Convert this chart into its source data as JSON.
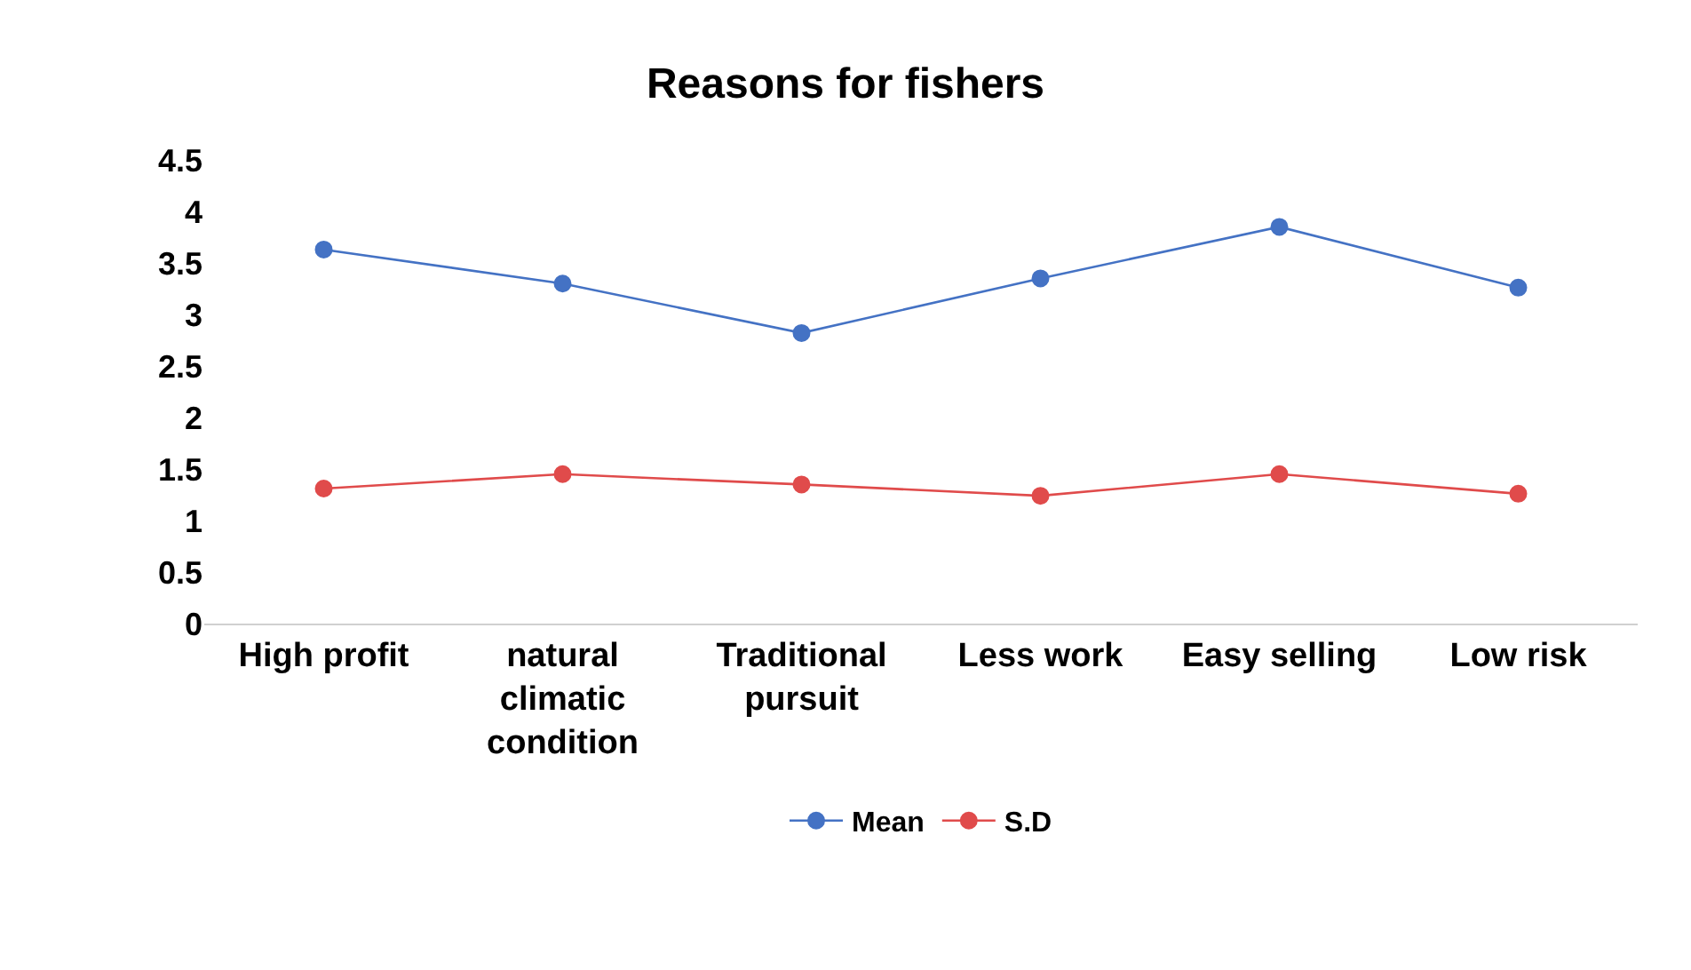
{
  "chart_data": {
    "type": "line",
    "title": "Reasons for fishers",
    "categories": [
      "High profit",
      "natural climatic condition",
      "Traditional pursuit",
      "Less work",
      "Easy selling",
      "Low risk"
    ],
    "series": [
      {
        "name": "Mean",
        "color": "#4472c4",
        "values": [
          3.63,
          3.3,
          2.82,
          3.35,
          3.85,
          3.26
        ]
      },
      {
        "name": "S.D",
        "color": "#e04b4b",
        "values": [
          1.31,
          1.45,
          1.35,
          1.24,
          1.45,
          1.26
        ]
      }
    ],
    "ylim": [
      0,
      4.5
    ],
    "yticks": [
      0,
      0.5,
      1,
      1.5,
      2,
      2.5,
      3,
      3.5,
      4,
      4.5
    ],
    "grid": false,
    "legend": "bottom",
    "marker": "circle",
    "line_style": "solid"
  }
}
